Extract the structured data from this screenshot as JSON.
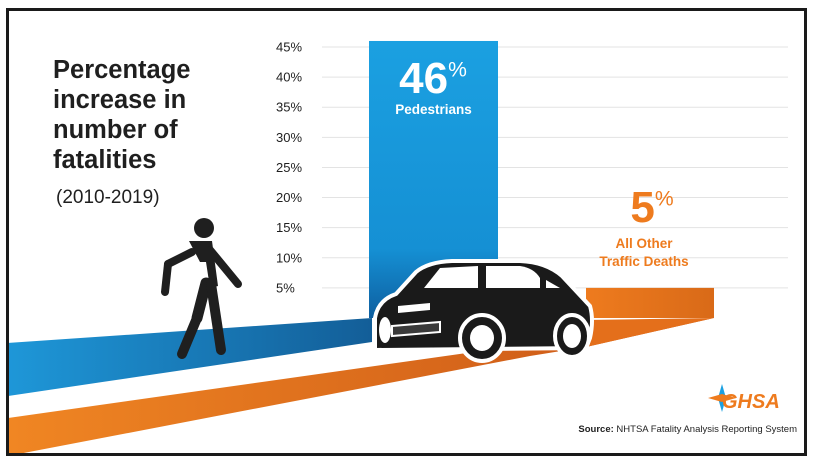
{
  "chart_data": {
    "type": "bar",
    "title": "Percentage increase in number of fatalities",
    "subtitle": "(2010-2019)",
    "categories": [
      "Pedestrians",
      "All Other Traffic Deaths"
    ],
    "values": [
      46,
      5
    ],
    "value_labels": [
      "46",
      "5"
    ],
    "value_suffix": "%",
    "category_labels": [
      [
        "Pedestrians"
      ],
      [
        "All Other",
        "Traffic Deaths"
      ]
    ],
    "yticks": [
      "45%",
      "40%",
      "35%",
      "30%",
      "25%",
      "20%",
      "15%",
      "10%",
      "5%"
    ],
    "ytick_values": [
      45,
      40,
      35,
      30,
      25,
      20,
      15,
      10,
      5
    ],
    "ylim": [
      0,
      45
    ],
    "grid": true,
    "colors": {
      "Pedestrians": "#1ba0e1",
      "All Other Traffic Deaths": "#ee7b1e"
    }
  },
  "source": {
    "label": "Source:",
    "text": "NHTSA Fatality Analysis Reporting System"
  },
  "logo": {
    "text": "GHSA"
  },
  "colors": {
    "blue": "#1ba0e1",
    "orange": "#ee7b1e",
    "dark": "#1f1f1f",
    "road_blue": "#1e87c9",
    "road_orange": "#e46f1b"
  },
  "icons": [
    "pedestrian-icon",
    "car-icon",
    "ghsa-compass-icon"
  ]
}
